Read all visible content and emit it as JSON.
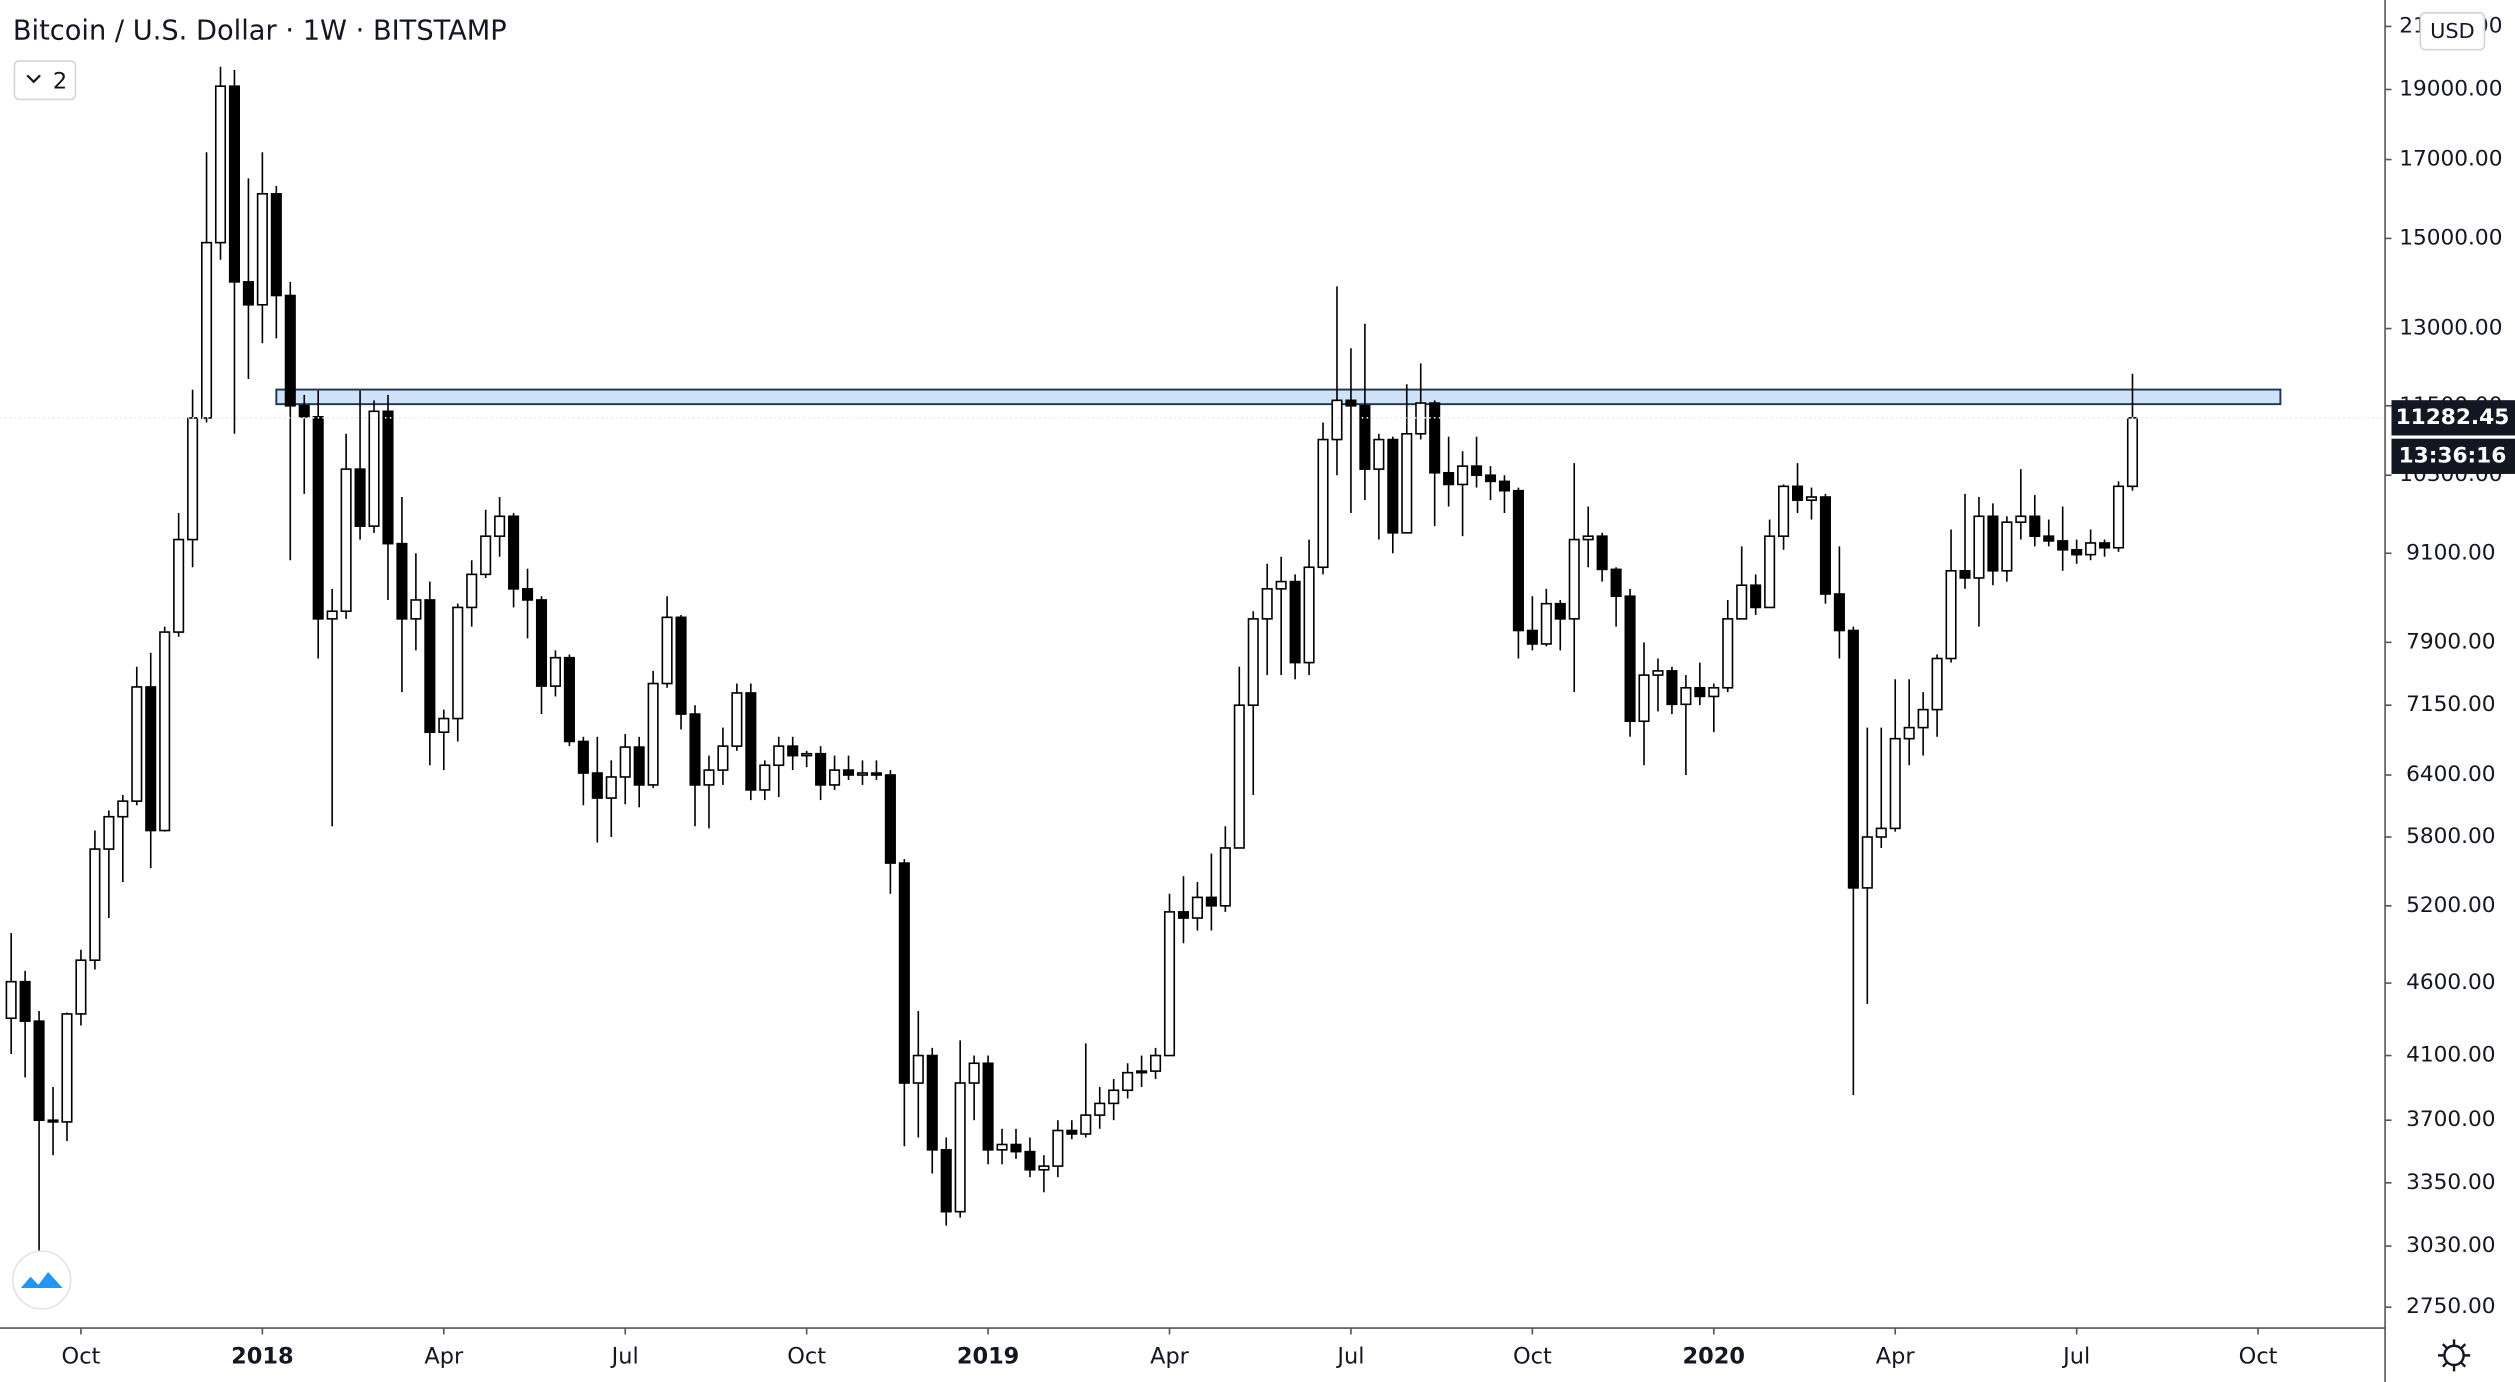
{
  "chart_data": {
    "type": "candlestick",
    "title": "Bitcoin / U.S. Dollar · 1W · BITSTAMP",
    "indicator_count": "2",
    "currency": "USD",
    "countdown": "13:36:16",
    "log_scale": true,
    "up_color": "#ffffff",
    "down_color": "#000000",
    "wick_color": "#000000",
    "ylim": [
      2660,
      21900
    ],
    "yticks": [
      {
        "value": 2750,
        "label": "2750.00"
      },
      {
        "value": 3030,
        "label": "3030.00"
      },
      {
        "value": 3350,
        "label": "3350.00"
      },
      {
        "value": 3700,
        "label": "3700.00"
      },
      {
        "value": 4100,
        "label": "4100.00"
      },
      {
        "value": 4600,
        "label": "4600.00"
      },
      {
        "value": 5200,
        "label": "5200.00"
      },
      {
        "value": 5800,
        "label": "5800.00"
      },
      {
        "value": 6400,
        "label": "6400.00"
      },
      {
        "value": 7150,
        "label": "7150.00"
      },
      {
        "value": 7900,
        "label": "7900.00"
      },
      {
        "value": 9100,
        "label": "9100.00"
      },
      {
        "value": 10300,
        "label": "10300.00"
      },
      {
        "value": 11500,
        "label": "11500.00"
      },
      {
        "value": 13000,
        "label": "13000.00"
      },
      {
        "value": 15000,
        "label": "15000.00"
      },
      {
        "value": 17000,
        "label": "17000.00"
      },
      {
        "value": 19000,
        "label": "19000.00"
      },
      {
        "value": 21000,
        "label": "21000.00"
      }
    ],
    "xlim": [
      -0.8,
      170.1
    ],
    "xticks": [
      {
        "value": 5,
        "label": "Oct"
      },
      {
        "value": 18,
        "label": "2018"
      },
      {
        "value": 31,
        "label": "Apr"
      },
      {
        "value": 44,
        "label": "Jul"
      },
      {
        "value": 57,
        "label": "Oct"
      },
      {
        "value": 70,
        "label": "2019"
      },
      {
        "value": 83,
        "label": "Apr"
      },
      {
        "value": 96,
        "label": "Jul"
      },
      {
        "value": 109,
        "label": "Oct"
      },
      {
        "value": 122,
        "label": "2020"
      },
      {
        "value": 135,
        "label": "Apr"
      },
      {
        "value": 148,
        "label": "Jul"
      },
      {
        "value": 161,
        "label": "Oct"
      }
    ],
    "zone": {
      "low": 11530,
      "high": 11800,
      "x0": 19,
      "x1": 162.6,
      "color": "#cfe2f7",
      "border": "#1f3550"
    },
    "ohlc": [
      [
        4350,
        4980,
        4110,
        4610
      ],
      [
        4610,
        4690,
        3960,
        4330
      ],
      [
        4330,
        4400,
        2980,
        3700
      ],
      [
        3700,
        3900,
        3500,
        3690
      ],
      [
        3690,
        4390,
        3580,
        4380
      ],
      [
        4380,
        4850,
        4300,
        4770
      ],
      [
        4770,
        5860,
        4700,
        5690
      ],
      [
        5690,
        6050,
        5100,
        5990
      ],
      [
        5990,
        6200,
        5400,
        6140
      ],
      [
        6140,
        7600,
        6100,
        7360
      ],
      [
        7360,
        7770,
        5520,
        5860
      ],
      [
        5860,
        8100,
        5850,
        8030
      ],
      [
        8030,
        9700,
        7970,
        9300
      ],
      [
        9300,
        11800,
        8900,
        11280
      ],
      [
        11280,
        17200,
        11200,
        14900
      ],
      [
        14900,
        19700,
        14500,
        19100
      ],
      [
        19100,
        19600,
        11000,
        14000
      ],
      [
        14000,
        16500,
        12000,
        13500
      ],
      [
        13500,
        17200,
        12700,
        16100
      ],
      [
        16100,
        16300,
        12800,
        13700
      ],
      [
        13700,
        14000,
        9000,
        11500
      ],
      [
        11500,
        11700,
        10000,
        11300
      ],
      [
        11300,
        11780,
        7700,
        8200
      ],
      [
        8200,
        8600,
        5900,
        8300
      ],
      [
        8300,
        11000,
        8200,
        10400
      ],
      [
        10400,
        11780,
        9300,
        9500
      ],
      [
        9500,
        11600,
        9400,
        11400
      ],
      [
        11400,
        11700,
        8450,
        9240
      ],
      [
        9240,
        9950,
        7300,
        8200
      ],
      [
        8200,
        9100,
        7800,
        8450
      ],
      [
        8450,
        8700,
        6500,
        6850
      ],
      [
        6850,
        7100,
        6450,
        7000
      ],
      [
        7000,
        8400,
        6750,
        8350
      ],
      [
        8350,
        9000,
        8100,
        8800
      ],
      [
        8800,
        9750,
        8750,
        9350
      ],
      [
        9350,
        9950,
        9050,
        9650
      ],
      [
        9650,
        9700,
        8350,
        8600
      ],
      [
        8600,
        8880,
        7950,
        8450
      ],
      [
        8450,
        8500,
        7050,
        7370
      ],
      [
        7370,
        7800,
        7250,
        7710
      ],
      [
        7710,
        7750,
        6700,
        6750
      ],
      [
        6750,
        6800,
        6100,
        6420
      ],
      [
        6420,
        6800,
        5750,
        6170
      ],
      [
        6170,
        6550,
        5800,
        6380
      ],
      [
        6380,
        6830,
        6110,
        6690
      ],
      [
        6690,
        6800,
        6080,
        6300
      ],
      [
        6300,
        7550,
        6270,
        7400
      ],
      [
        7400,
        8500,
        7350,
        8220
      ],
      [
        8220,
        8250,
        6880,
        7050
      ],
      [
        7050,
        7150,
        5900,
        6300
      ],
      [
        6300,
        6600,
        5880,
        6450
      ],
      [
        6450,
        6900,
        6300,
        6700
      ],
      [
        6700,
        7400,
        6650,
        7290
      ],
      [
        7290,
        7400,
        6150,
        6250
      ],
      [
        6250,
        6550,
        6150,
        6500
      ],
      [
        6500,
        6800,
        6180,
        6700
      ],
      [
        6700,
        6800,
        6450,
        6600
      ],
      [
        6600,
        6650,
        6480,
        6620
      ],
      [
        6620,
        6700,
        6150,
        6300
      ],
      [
        6300,
        6600,
        6250,
        6450
      ],
      [
        6450,
        6600,
        6350,
        6400
      ],
      [
        6400,
        6550,
        6300,
        6420
      ],
      [
        6420,
        6550,
        6350,
        6400
      ],
      [
        6400,
        6450,
        5300,
        5565
      ],
      [
        5565,
        5600,
        3550,
        3925
      ],
      [
        3925,
        4400,
        3600,
        4100
      ],
      [
        4100,
        4150,
        3400,
        3530
      ],
      [
        3530,
        3600,
        3130,
        3200
      ],
      [
        3200,
        4200,
        3170,
        3925
      ],
      [
        3925,
        4100,
        3700,
        4050
      ],
      [
        4050,
        4100,
        3450,
        3530
      ],
      [
        3530,
        3650,
        3450,
        3560
      ],
      [
        3560,
        3650,
        3480,
        3520
      ],
      [
        3520,
        3600,
        3380,
        3420
      ],
      [
        3420,
        3500,
        3300,
        3440
      ],
      [
        3440,
        3700,
        3380,
        3640
      ],
      [
        3640,
        3700,
        3590,
        3620
      ],
      [
        3620,
        4180,
        3600,
        3730
      ],
      [
        3730,
        3900,
        3650,
        3800
      ],
      [
        3800,
        3950,
        3700,
        3880
      ],
      [
        3880,
        4050,
        3830,
        3990
      ],
      [
        3990,
        4100,
        3900,
        4000
      ],
      [
        4000,
        4150,
        3950,
        4100
      ],
      [
        4100,
        5300,
        4100,
        5150
      ],
      [
        5150,
        5450,
        4900,
        5100
      ],
      [
        5100,
        5400,
        5000,
        5270
      ],
      [
        5270,
        5650,
        5000,
        5200
      ],
      [
        5200,
        5900,
        5150,
        5700
      ],
      [
        5700,
        7600,
        5700,
        7150
      ],
      [
        7150,
        8300,
        6200,
        8200
      ],
      [
        8200,
        8950,
        7500,
        8600
      ],
      [
        8600,
        9050,
        7500,
        8700
      ],
      [
        8700,
        8800,
        7450,
        7650
      ],
      [
        7650,
        9300,
        7500,
        8900
      ],
      [
        8900,
        11200,
        8800,
        10900
      ],
      [
        10900,
        13900,
        10300,
        11600
      ],
      [
        11600,
        12600,
        9700,
        11500
      ],
      [
        11500,
        13100,
        9900,
        10400
      ],
      [
        10400,
        11000,
        9300,
        10900
      ],
      [
        10900,
        10950,
        9100,
        9400
      ],
      [
        9400,
        11900,
        9400,
        11000
      ],
      [
        11000,
        12300,
        10900,
        11550
      ],
      [
        11550,
        11600,
        9500,
        10340
      ],
      [
        10340,
        10950,
        9800,
        10150
      ],
      [
        10150,
        10700,
        9350,
        10450
      ],
      [
        10450,
        10950,
        10100,
        10300
      ],
      [
        10300,
        10450,
        9900,
        10200
      ],
      [
        10200,
        10300,
        9700,
        10050
      ],
      [
        10050,
        10100,
        7700,
        8050
      ],
      [
        8050,
        8500,
        7800,
        7880
      ],
      [
        7880,
        8600,
        7850,
        8400
      ],
      [
        8400,
        8450,
        7800,
        8200
      ],
      [
        8200,
        10500,
        7300,
        9300
      ],
      [
        9300,
        9800,
        8900,
        9350
      ],
      [
        9350,
        9400,
        8700,
        8870
      ],
      [
        8870,
        8900,
        8100,
        8500
      ],
      [
        8500,
        8600,
        6800,
        6970
      ],
      [
        6970,
        7900,
        6500,
        7500
      ],
      [
        7500,
        7700,
        7080,
        7550
      ],
      [
        7550,
        7600,
        7050,
        7160
      ],
      [
        7160,
        7500,
        6400,
        7350
      ],
      [
        7350,
        7650,
        7150,
        7250
      ],
      [
        7250,
        7400,
        6850,
        7350
      ],
      [
        7350,
        8450,
        7300,
        8200
      ],
      [
        8200,
        9200,
        8200,
        8650
      ],
      [
        8650,
        8800,
        8250,
        8350
      ],
      [
        8350,
        9600,
        8350,
        9350
      ],
      [
        9350,
        10150,
        9150,
        10120
      ],
      [
        10120,
        10500,
        9700,
        9900
      ],
      [
        9900,
        10100,
        9600,
        9950
      ],
      [
        9950,
        10000,
        8400,
        8530
      ],
      [
        8530,
        9200,
        7700,
        8050
      ],
      [
        8050,
        8100,
        3850,
        5350
      ],
      [
        5350,
        6900,
        4450,
        5800
      ],
      [
        5800,
        6900,
        5700,
        5880
      ],
      [
        5880,
        7450,
        5850,
        6780
      ],
      [
        6780,
        7450,
        6500,
        6900
      ],
      [
        6900,
        7300,
        6600,
        7100
      ],
      [
        7100,
        7750,
        6800,
        7700
      ],
      [
        7700,
        9450,
        7650,
        8850
      ],
      [
        8850,
        10000,
        8600,
        8750
      ],
      [
        8750,
        9950,
        8100,
        9650
      ],
      [
        9650,
        9850,
        8650,
        8850
      ],
      [
        8850,
        9650,
        8700,
        9560
      ],
      [
        9560,
        10400,
        9300,
        9650
      ],
      [
        9650,
        9980,
        9200,
        9350
      ],
      [
        9350,
        9600,
        9200,
        9280
      ],
      [
        9280,
        9800,
        8850,
        9150
      ],
      [
        9150,
        9300,
        8950,
        9080
      ],
      [
        9080,
        9450,
        9000,
        9250
      ],
      [
        9250,
        9300,
        9050,
        9180
      ],
      [
        9180,
        10200,
        9120,
        10120
      ],
      [
        10120,
        12100,
        10050,
        11282.45
      ]
    ]
  }
}
